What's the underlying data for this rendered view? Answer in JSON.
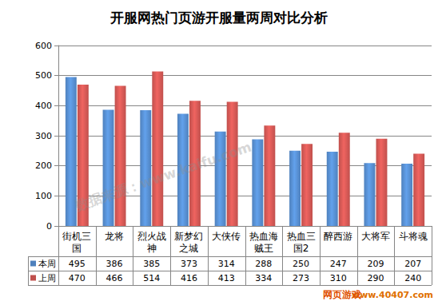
{
  "chart_data": {
    "type": "bar",
    "title": "开服网热门页游开服量两周对比分析",
    "categories": [
      "街机三国",
      "龙将",
      "烈火战神",
      "新梦幻之城",
      "大侠传",
      "热血海贼王",
      "热血三国2",
      "醉西游",
      "大将军",
      "斗将魂"
    ],
    "series": [
      {
        "name": "本周",
        "color": "#4f81bd",
        "values": [
          495,
          386,
          385,
          373,
          314,
          288,
          250,
          247,
          209,
          207
        ]
      },
      {
        "name": "上周",
        "color": "#c0504d",
        "values": [
          470,
          466,
          514,
          416,
          413,
          334,
          273,
          310,
          290,
          240
        ]
      }
    ],
    "ylim": [
      0,
      600
    ],
    "yticks": [
      0,
      100,
      200,
      300,
      400,
      500,
      600
    ],
    "grid": true,
    "annotations": [
      "数据来源：www.kaifu.com",
      "网页游戏",
      "www.40407.com"
    ]
  }
}
